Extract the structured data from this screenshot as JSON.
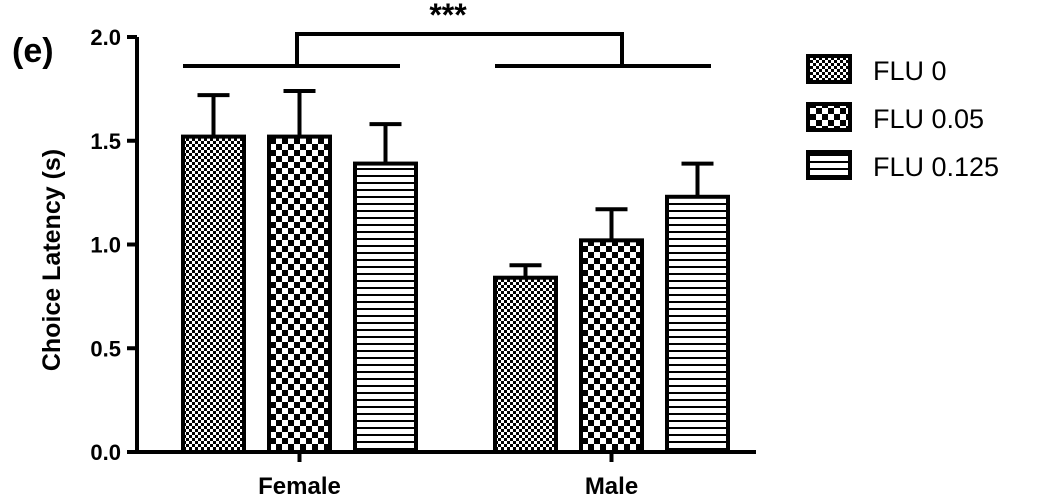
{
  "panel_label": "(e)",
  "significance": "***",
  "chart_data": {
    "type": "bar",
    "title": "",
    "xlabel": "",
    "ylabel": "Choice Latency (s)",
    "categories": [
      "Female",
      "Male"
    ],
    "ylim": [
      0,
      2.0
    ],
    "yticks": [
      "0.0",
      "0.5",
      "1.0",
      "1.5",
      "2.0"
    ],
    "series": [
      {
        "name": "FLU 0",
        "pattern": "checker-fine",
        "values": [
          1.52,
          0.84
        ],
        "errors": [
          0.2,
          0.06
        ]
      },
      {
        "name": "FLU 0.05",
        "pattern": "checker-coarse",
        "values": [
          1.52,
          1.02
        ],
        "errors": [
          0.22,
          0.15
        ]
      },
      {
        "name": "FLU 0.125",
        "pattern": "horizontal-lines",
        "values": [
          1.39,
          1.23
        ],
        "errors": [
          0.19,
          0.16
        ]
      }
    ],
    "legend_position": "top-right",
    "grid": false,
    "colors": {
      "stroke": "#000000",
      "fill": "#ffffff"
    }
  }
}
